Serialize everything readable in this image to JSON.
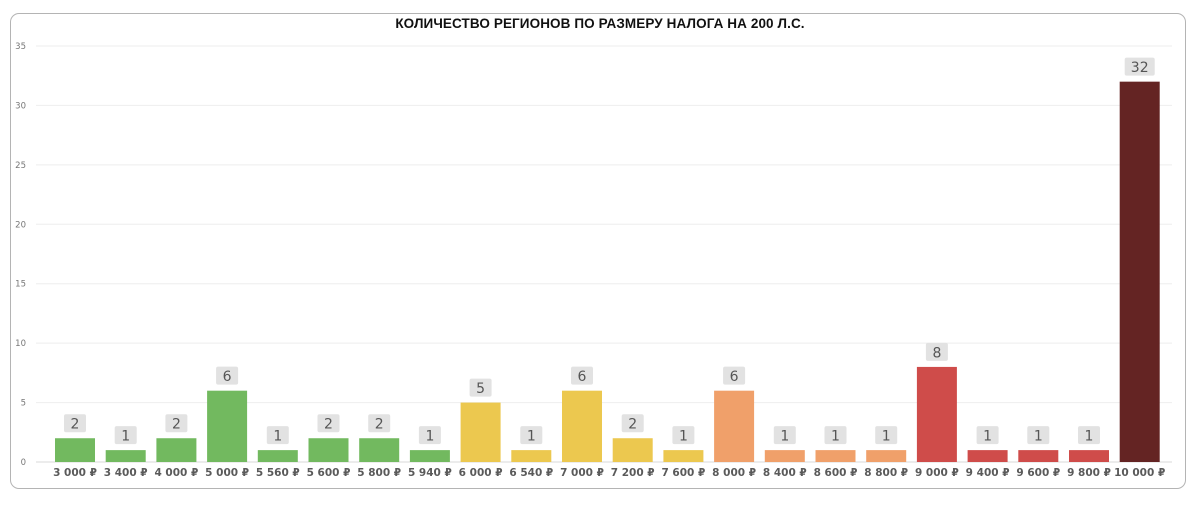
{
  "chart_data": {
    "type": "bar",
    "title": "КОЛИЧЕСТВО РЕГИОНОВ ПО РАЗМЕРУ НАЛОГА НА 200 Л.С.",
    "xlabel": "",
    "ylabel": "",
    "ylim": [
      0,
      35
    ],
    "yticks": [
      0,
      5,
      10,
      15,
      20,
      25,
      30,
      35
    ],
    "grid": true,
    "legend": "none",
    "categories": [
      "3 000 ₽",
      "3 400 ₽",
      "4 000 ₽",
      "5 000 ₽",
      "5 560 ₽",
      "5 600 ₽",
      "5 800 ₽",
      "5 940 ₽",
      "6 000 ₽",
      "6 540 ₽",
      "7 000 ₽",
      "7 200 ₽",
      "7 600 ₽",
      "8 000 ₽",
      "8 400 ₽",
      "8 600 ₽",
      "8 800 ₽",
      "9 000 ₽",
      "9 400 ₽",
      "9 600 ₽",
      "9 800 ₽",
      "10 000 ₽"
    ],
    "values": [
      2,
      1,
      2,
      6,
      1,
      2,
      2,
      1,
      5,
      1,
      6,
      2,
      1,
      6,
      1,
      1,
      1,
      8,
      1,
      1,
      1,
      32
    ],
    "colors": [
      "#72b95f",
      "#72b95f",
      "#72b95f",
      "#72b95f",
      "#72b95f",
      "#72b95f",
      "#72b95f",
      "#72b95f",
      "#ecc84f",
      "#ecc84f",
      "#ecc84f",
      "#ecc84f",
      "#ecc84f",
      "#f0a06a",
      "#f0a06a",
      "#f0a06a",
      "#f0a06a",
      "#cf4c4a",
      "#cf4c4a",
      "#cf4c4a",
      "#cf4c4a",
      "#642423"
    ],
    "label_background": "#e2e2e2"
  }
}
